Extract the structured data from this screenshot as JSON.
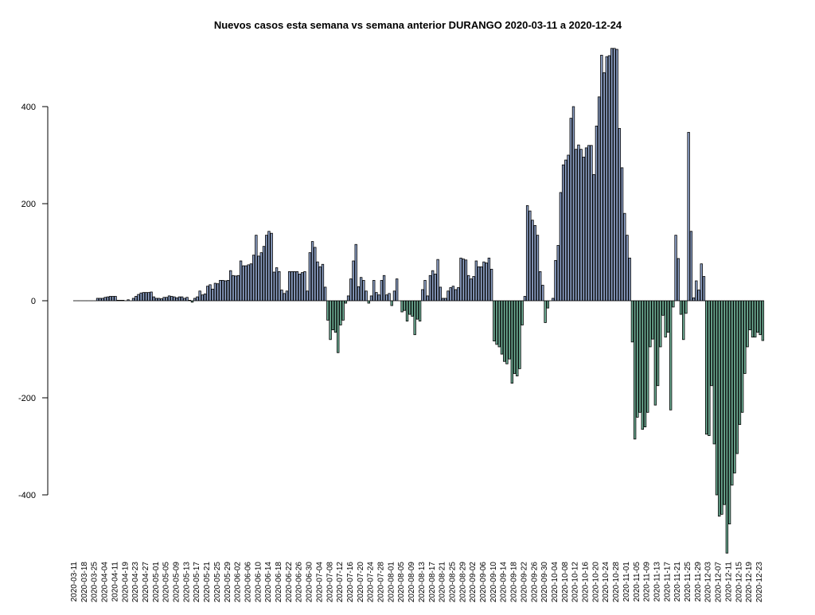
{
  "chart_data": {
    "type": "bar",
    "title": "Nuevos casos esta semana vs semana anterior DURANGO 2020-03-11 a 2020-12-24",
    "xlabel": "",
    "ylabel": "",
    "ylim": [
      -520,
      520
    ],
    "y_ticks": [
      400,
      200,
      0,
      -200,
      -400
    ],
    "y_tick_labels": [
      "400",
      "200",
      "0",
      "-200",
      "-400"
    ],
    "x_tick_labels": [
      "2020-03-11",
      "2020-03-18",
      "2020-03-25",
      "2020-04-04",
      "2020-04-11",
      "2020-04-19",
      "2020-04-23",
      "2020-04-27",
      "2020-05-01",
      "2020-05-05",
      "2020-05-09",
      "2020-05-13",
      "2020-05-17",
      "2020-05-21",
      "2020-05-25",
      "2020-05-29",
      "2020-06-02",
      "2020-06-06",
      "2020-06-10",
      "2020-06-14",
      "2020-06-18",
      "2020-06-22",
      "2020-06-26",
      "2020-06-30",
      "2020-07-04",
      "2020-07-08",
      "2020-07-12",
      "2020-07-16",
      "2020-07-20",
      "2020-07-24",
      "2020-07-28",
      "2020-08-01",
      "2020-08-05",
      "2020-08-09",
      "2020-08-13",
      "2020-08-17",
      "2020-08-21",
      "2020-08-25",
      "2020-08-29",
      "2020-09-02",
      "2020-09-06",
      "2020-09-10",
      "2020-09-14",
      "2020-09-18",
      "2020-09-22",
      "2020-09-26",
      "2020-09-30",
      "2020-10-04",
      "2020-10-08",
      "2020-10-12",
      "2020-10-16",
      "2020-10-20",
      "2020-10-24",
      "2020-10-28",
      "2020-11-01",
      "2020-11-05",
      "2020-11-09",
      "2020-11-13",
      "2020-11-17",
      "2020-11-21",
      "2020-11-25",
      "2020-11-29",
      "2020-12-03",
      "2020-12-07",
      "2020-12-11",
      "2020-12-15",
      "2020-12-19",
      "2020-12-23"
    ],
    "positive_color": "#8EA2C8",
    "negative_color": "#6FAF96",
    "grid": false,
    "values": [
      0,
      0,
      0,
      0,
      0,
      0,
      0,
      0,
      0,
      5,
      5,
      5,
      7,
      8,
      9,
      9,
      9,
      1,
      1,
      1,
      0,
      2,
      0,
      5,
      9,
      13,
      16,
      17,
      17,
      17,
      18,
      8,
      5,
      5,
      4,
      7,
      7,
      10,
      9,
      8,
      6,
      8,
      8,
      5,
      7,
      1,
      -3,
      5,
      8,
      20,
      12,
      14,
      30,
      33,
      24,
      36,
      35,
      42,
      42,
      41,
      42,
      62,
      52,
      51,
      52,
      82,
      72,
      72,
      74,
      76,
      94,
      135,
      92,
      99,
      112,
      135,
      143,
      139,
      59,
      68,
      60,
      22,
      15,
      20,
      60,
      60,
      60,
      60,
      55,
      58,
      60,
      20,
      99,
      122,
      110,
      80,
      70,
      75,
      28,
      -40,
      -80,
      -60,
      -65,
      -107,
      -50,
      -40,
      -5,
      10,
      45,
      82,
      116,
      29,
      48,
      42,
      20,
      -5,
      10,
      42,
      17,
      12,
      42,
      52,
      12,
      15,
      -10,
      20,
      45,
      0,
      -23,
      -20,
      -42,
      -28,
      -32,
      -70,
      -38,
      -42,
      23,
      42,
      10,
      52,
      62,
      55,
      85,
      28,
      5,
      5,
      20,
      27,
      30,
      23,
      27,
      88,
      86,
      84,
      52,
      45,
      50,
      82,
      70,
      70,
      80,
      78,
      88,
      65,
      -83,
      -90,
      -95,
      -110,
      -125,
      -130,
      -120,
      -170,
      -150,
      -155,
      -140,
      -50,
      9,
      196,
      185,
      166,
      155,
      135,
      60,
      32,
      -45,
      -15,
      0,
      5,
      83,
      114,
      223,
      280,
      290,
      300,
      376,
      400,
      312,
      321,
      312,
      296,
      315,
      320,
      320,
      260,
      360,
      420,
      506,
      470,
      503,
      505,
      520,
      520,
      518,
      355,
      274,
      180,
      135,
      88,
      -85,
      -285,
      -240,
      -230,
      -265,
      -260,
      -230,
      -95,
      -79,
      -215,
      -175,
      -95,
      -30,
      -75,
      -65,
      -225,
      -13,
      135,
      87,
      -28,
      -80,
      -26,
      347,
      143,
      6,
      41,
      22,
      76,
      50,
      -275,
      -278,
      -175,
      -295,
      -400,
      -444,
      -440,
      -420,
      -520,
      -460,
      -380,
      -355,
      -315,
      -255,
      -230,
      -150,
      -95,
      -60,
      -75,
      -75,
      -65,
      -70,
      -82
    ]
  }
}
